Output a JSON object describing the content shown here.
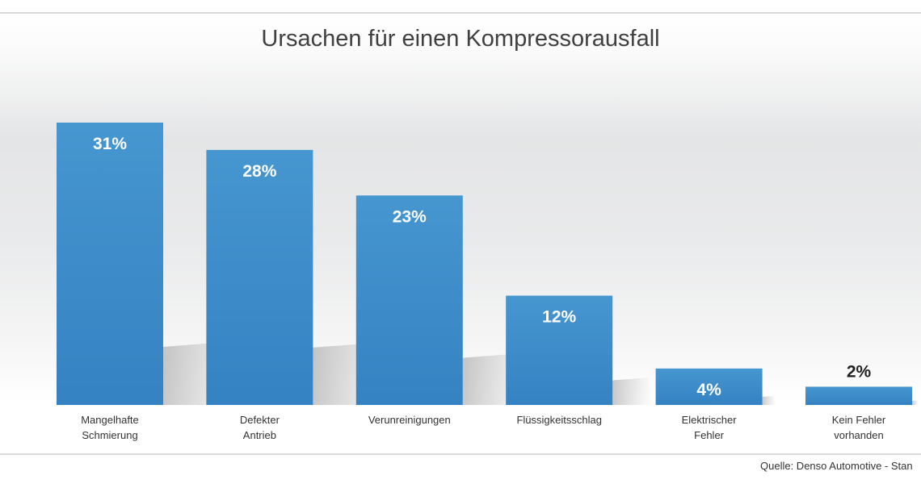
{
  "chart_data": {
    "type": "bar",
    "title": "Ursachen für einen Kompressorausfall",
    "categories": [
      [
        "Mangelhafte",
        "Schmierung"
      ],
      [
        "Defekter",
        "Antrieb"
      ],
      [
        "Verunreinigungen"
      ],
      [
        "Flüssigkeitsschlag"
      ],
      [
        "Elektrischer",
        "Fehler"
      ],
      [
        "Kein Fehler",
        "vorhanden"
      ]
    ],
    "values": [
      31,
      28,
      23,
      12,
      4,
      2
    ],
    "labels": [
      "31%",
      "28%",
      "23%",
      "12%",
      "4%",
      "2%"
    ],
    "xlabel": "",
    "ylabel": "",
    "ylim": [
      0,
      31
    ],
    "grid": false,
    "bar_color": "#3f8fcb",
    "source": "Quelle: Denso Automotive - Stan"
  }
}
